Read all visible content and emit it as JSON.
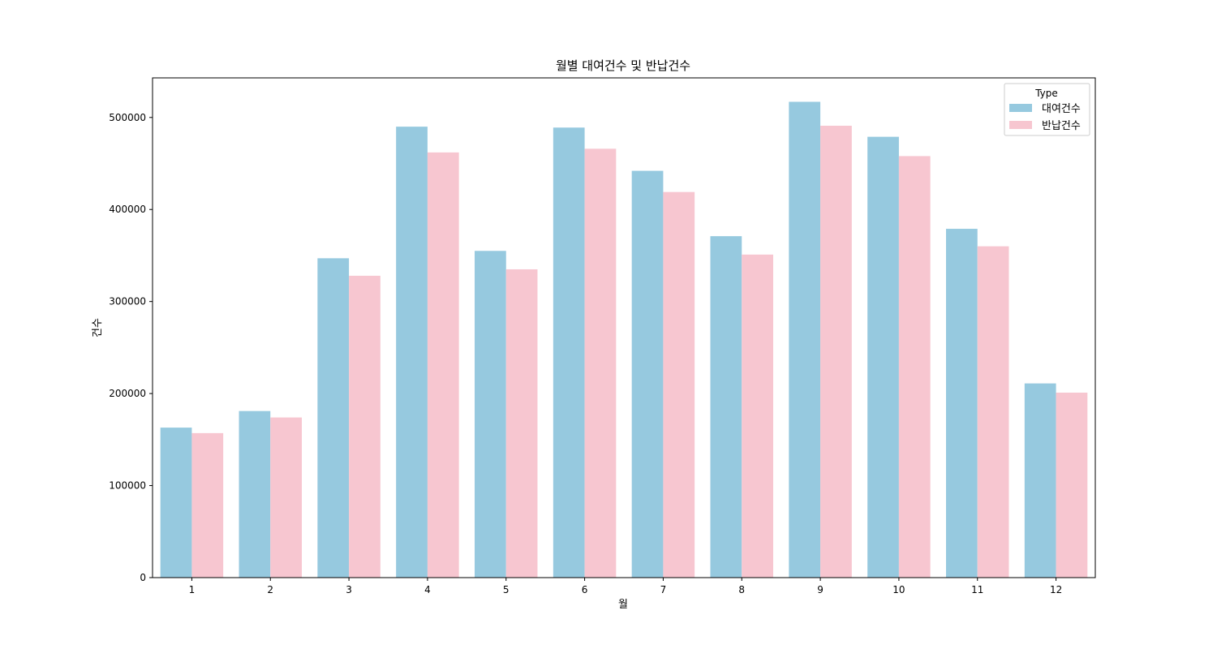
{
  "chart_data": {
    "type": "bar",
    "title": "월별 대여건수 및 반납건수",
    "xlabel": "월",
    "ylabel": "건수",
    "categories": [
      "1",
      "2",
      "3",
      "4",
      "5",
      "6",
      "7",
      "8",
      "9",
      "10",
      "11",
      "12"
    ],
    "series": [
      {
        "name": "대여건수",
        "color": "#96c9df",
        "values": [
          163000,
          181000,
          347000,
          490000,
          355000,
          489000,
          442000,
          371000,
          517000,
          479000,
          379000,
          211000
        ]
      },
      {
        "name": "반납건수",
        "color": "#f7c6d0",
        "values": [
          157000,
          174000,
          328000,
          462000,
          335000,
          466000,
          419000,
          351000,
          491000,
          458000,
          360000,
          201000
        ]
      }
    ],
    "ylim": [
      0,
      543000
    ],
    "yticks": [
      0,
      100000,
      200000,
      300000,
      400000,
      500000
    ],
    "grid": false,
    "legend": {
      "title": "Type",
      "placement": "top-right"
    }
  }
}
